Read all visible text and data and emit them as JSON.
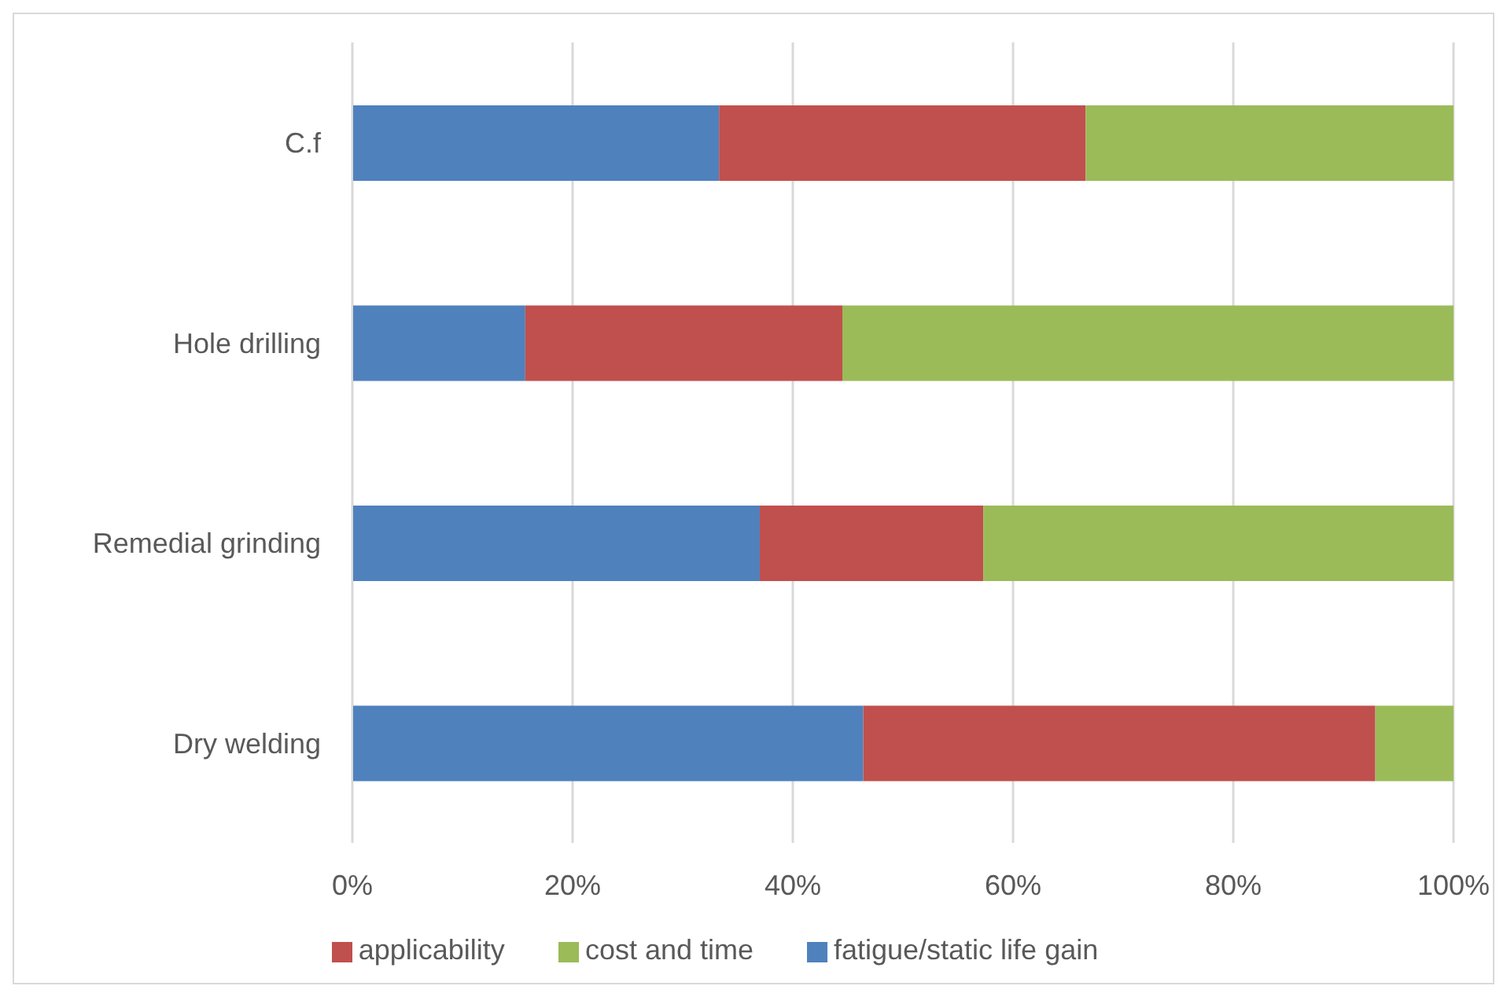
{
  "chart_data": {
    "type": "bar",
    "orientation": "horizontal",
    "stacked": true,
    "categories": [
      "C.f",
      "Hole drilling",
      "Remedial grinding",
      "Dry welding"
    ],
    "series": [
      {
        "name": "fatigue/static life gain",
        "color": "#4f81bd",
        "values": [
          33.3,
          15.7,
          37.0,
          46.4
        ]
      },
      {
        "name": "applicability",
        "color": "#c0504d",
        "values": [
          33.3,
          28.8,
          20.3,
          46.5
        ]
      },
      {
        "name": "cost and time",
        "color": "#9bbb59",
        "values": [
          33.4,
          55.5,
          42.7,
          7.1
        ]
      }
    ],
    "xlim": [
      0,
      100
    ],
    "xticks": [
      {
        "value": 0,
        "label": "0%"
      },
      {
        "value": 20,
        "label": "20%"
      },
      {
        "value": 40,
        "label": "40%"
      },
      {
        "value": 60,
        "label": "60%"
      },
      {
        "value": 80,
        "label": "80%"
      },
      {
        "value": 100,
        "label": "100%"
      }
    ],
    "grid": "x",
    "legend": "bottom"
  }
}
